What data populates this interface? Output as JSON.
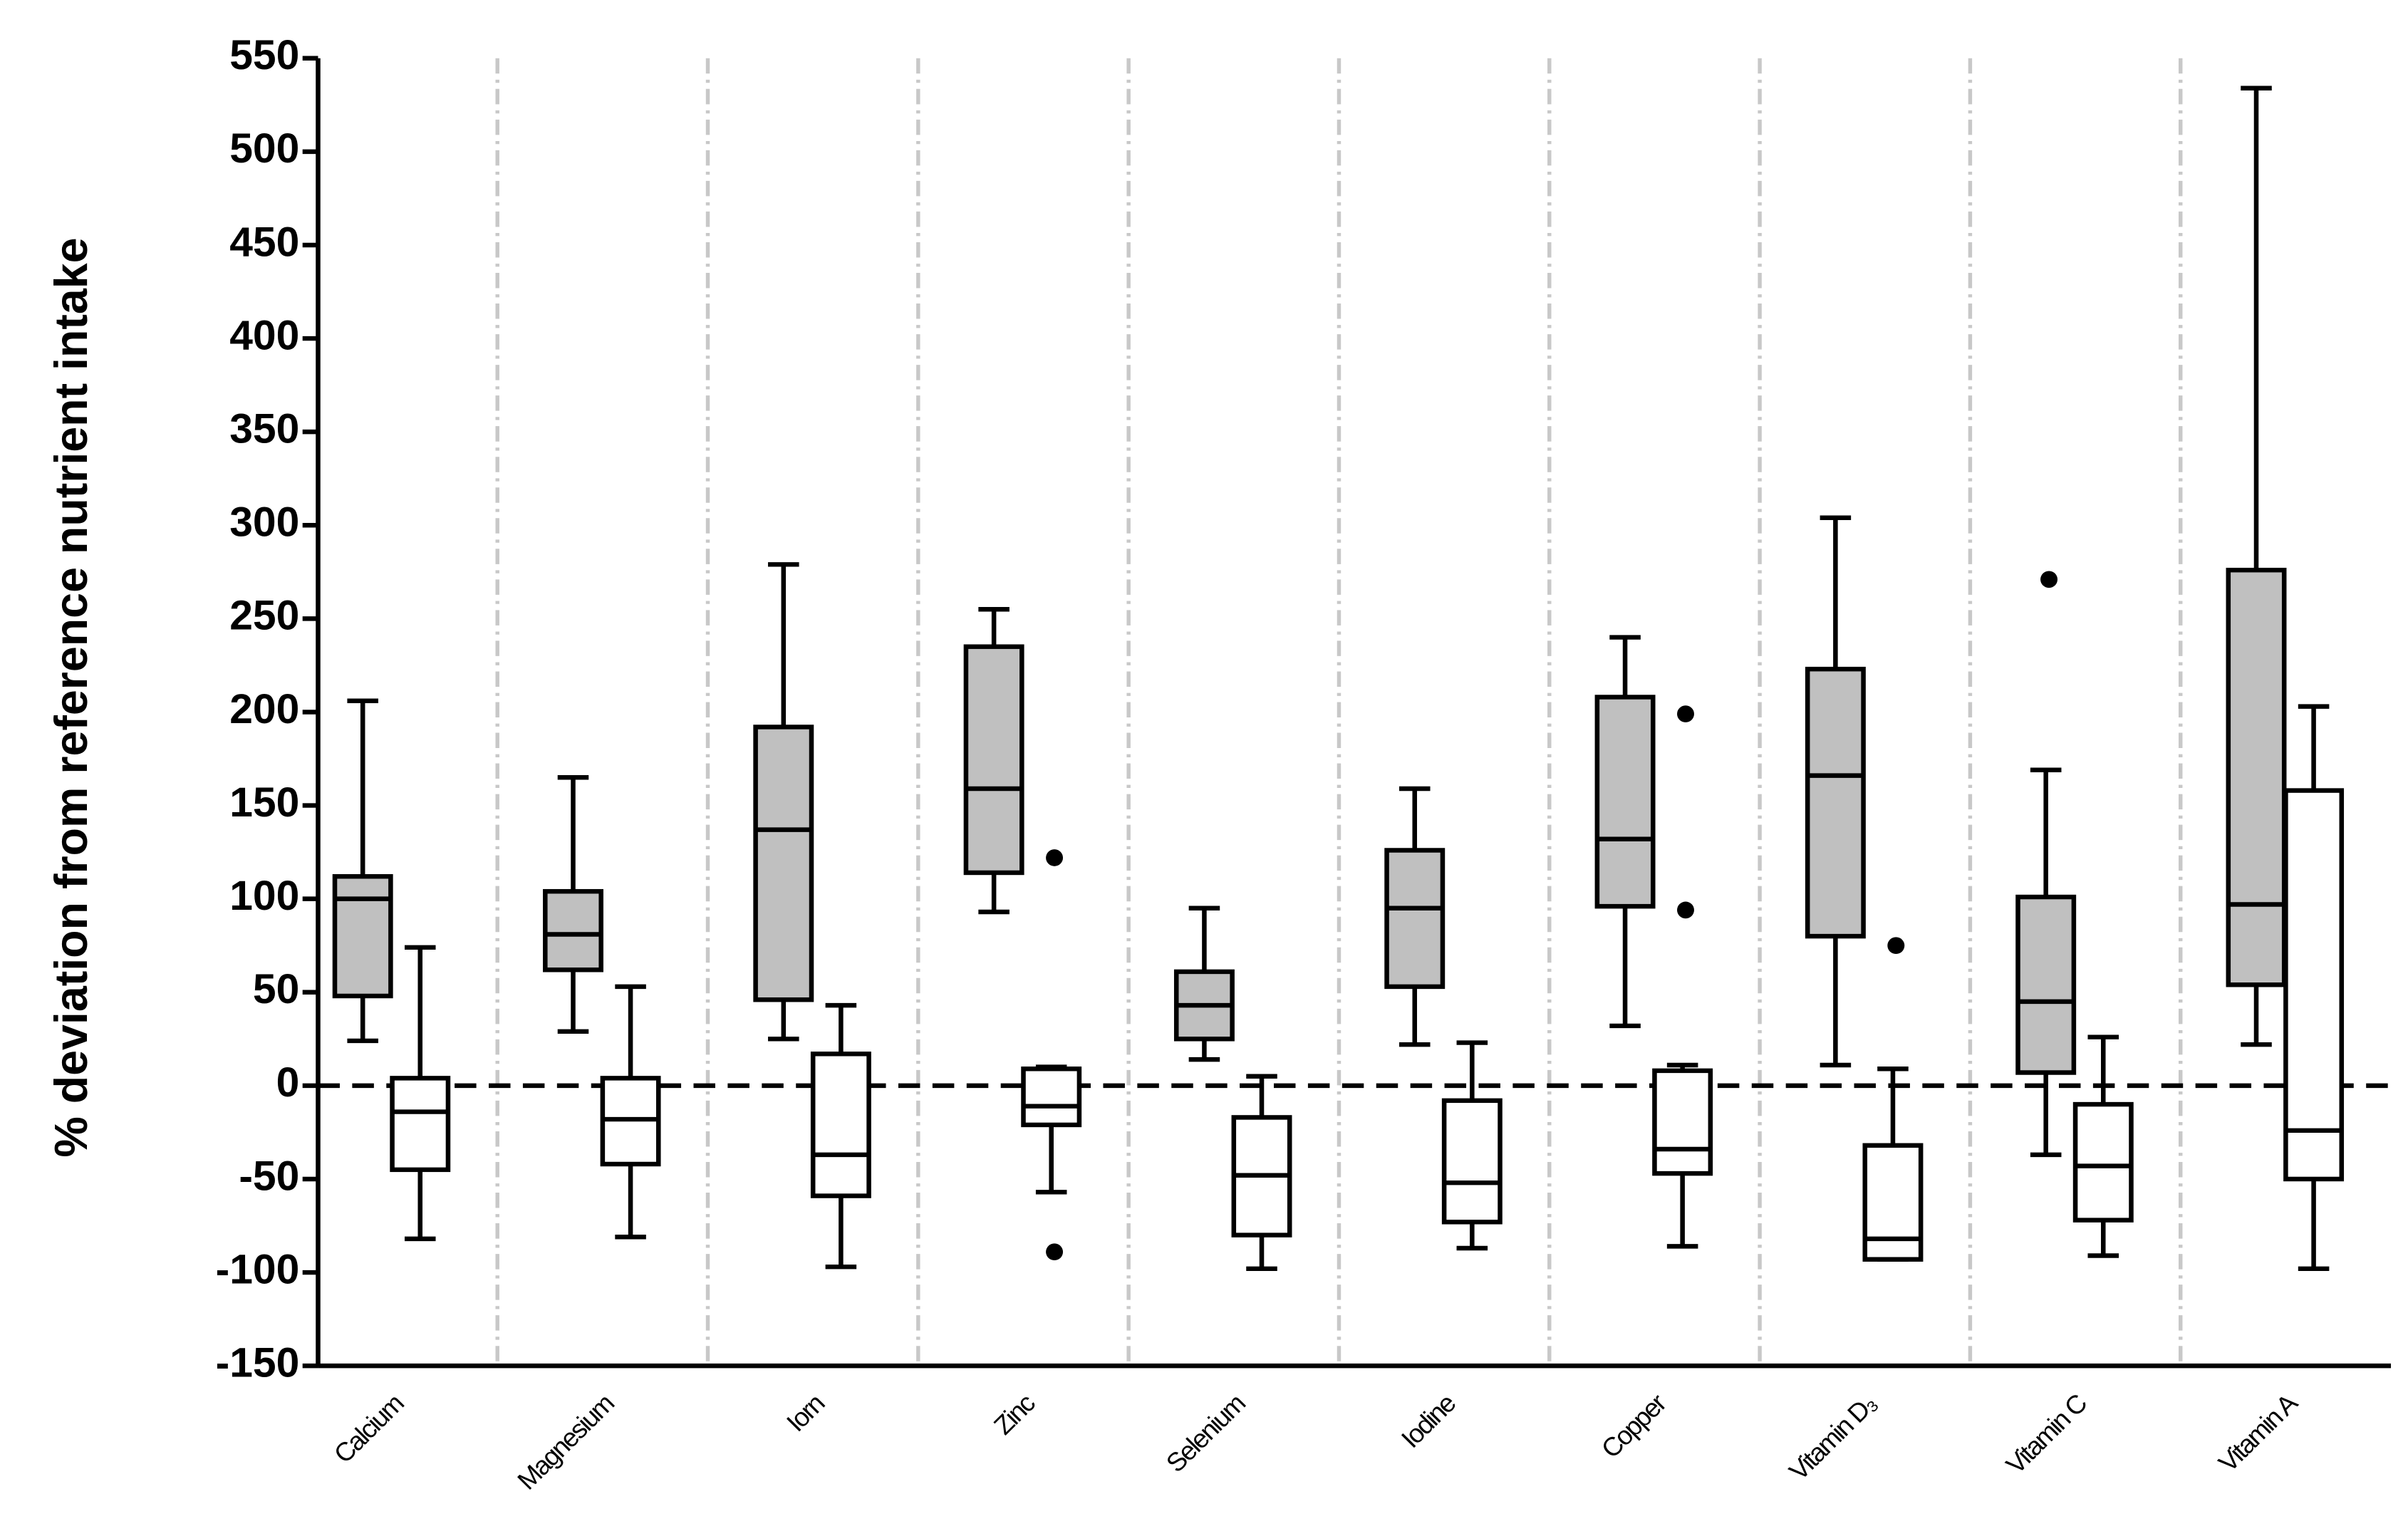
{
  "chart_data": {
    "type": "box",
    "y_label": "% deviation from reference nutrient intake",
    "categories": [
      "Calcium",
      "Magnesium",
      "Iorn",
      "Zinc",
      "Selenium",
      "Iodine",
      "Copper",
      "Vitamin D₃",
      "Vitamin C",
      "Vitamin A"
    ],
    "ylim": [
      -150,
      550
    ],
    "yticks": [
      -150,
      -100,
      -50,
      0,
      50,
      100,
      150,
      200,
      250,
      300,
      350,
      400,
      450,
      500,
      550
    ],
    "hline": 0,
    "series": [
      {
        "color": "#c0c0c0",
        "low": [
          24,
          29,
          25,
          93,
          14,
          22,
          32,
          11,
          -37,
          22
        ],
        "q1": [
          48,
          62,
          46,
          114,
          25,
          53,
          96,
          80,
          7,
          54
        ],
        "median": [
          100,
          81,
          137,
          159,
          43,
          95,
          132,
          166,
          45,
          97
        ],
        "q3": [
          112,
          104,
          192,
          235,
          61,
          126,
          208,
          223,
          101,
          276
        ],
        "high": [
          206,
          165,
          279,
          255,
          95,
          159,
          240,
          304,
          169,
          534
        ],
        "outliers": [
          [],
          [],
          [],
          [],
          [],
          [],
          [],
          [],
          [
            271
          ],
          []
        ]
      },
      {
        "color": "#ffffff",
        "low": [
          -82,
          -81,
          -97,
          -57,
          -98,
          -87,
          -86,
          -93,
          -91,
          -98
        ],
        "q1": [
          -45,
          -42,
          -59,
          -21,
          -80,
          -73,
          -47,
          -93,
          -72,
          -50
        ],
        "median": [
          -14,
          -18,
          -37,
          -11,
          -48,
          -52,
          -34,
          -82,
          -43,
          -24
        ],
        "q3": [
          4,
          4,
          17,
          9,
          -17,
          -8,
          8,
          -32,
          -10,
          158
        ],
        "high": [
          74,
          53,
          43,
          10,
          5,
          23,
          11,
          9,
          26,
          203
        ],
        "outliers": [
          [],
          [],
          [],
          [
            122,
            -89
          ],
          [],
          [],
          [
            199,
            94
          ],
          [
            75
          ],
          [],
          []
        ]
      }
    ]
  }
}
